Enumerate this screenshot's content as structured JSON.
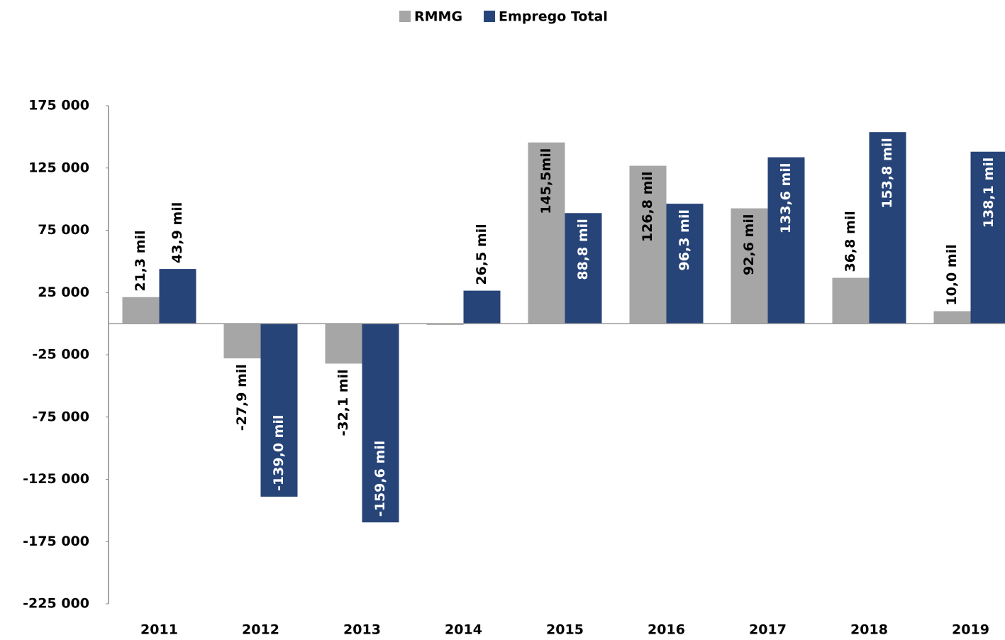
{
  "chart_data": {
    "type": "bar",
    "categories": [
      "2011",
      "2012",
      "2013",
      "2014",
      "2015",
      "2016",
      "2017",
      "2018",
      "2019"
    ],
    "series": [
      {
        "name": "RMMG",
        "color": "#a6a6a6",
        "values": [
          21300,
          -27900,
          -32100,
          -1000,
          145500,
          126800,
          92600,
          36800,
          10000
        ],
        "value_labels": [
          "21,3 mil",
          "-27,9 mil",
          "-32,1 mil",
          null,
          "145,5mil",
          "126,8 mil",
          "92,6 mil",
          "36,8 mil",
          "10,0 mil"
        ]
      },
      {
        "name": "Emprego Total",
        "color": "#264478",
        "values": [
          43900,
          -139000,
          -159600,
          26500,
          88800,
          96300,
          133600,
          153800,
          138100
        ],
        "value_labels": [
          "43,9 mil",
          "-139,0 mil",
          "-159,6 mil",
          "26,5 mil",
          "88,8 mil",
          "96,3 mil",
          "133,6 mil",
          "153,8 mil",
          "138,1 mil"
        ]
      }
    ],
    "ylim": [
      -225000,
      175000
    ],
    "yticks": [
      {
        "value": 175000,
        "label": "175 000"
      },
      {
        "value": 125000,
        "label": "125 000"
      },
      {
        "value": 75000,
        "label": "75 000"
      },
      {
        "value": 25000,
        "label": "25 000"
      },
      {
        "value": -25000,
        "label": "-25 000"
      },
      {
        "value": -75000,
        "label": "-75 000"
      },
      {
        "value": -125000,
        "label": "-125 000"
      },
      {
        "value": -175000,
        "label": "-175 000"
      },
      {
        "value": -225000,
        "label": "-225 000"
      }
    ],
    "legend": "top",
    "grid": false
  }
}
